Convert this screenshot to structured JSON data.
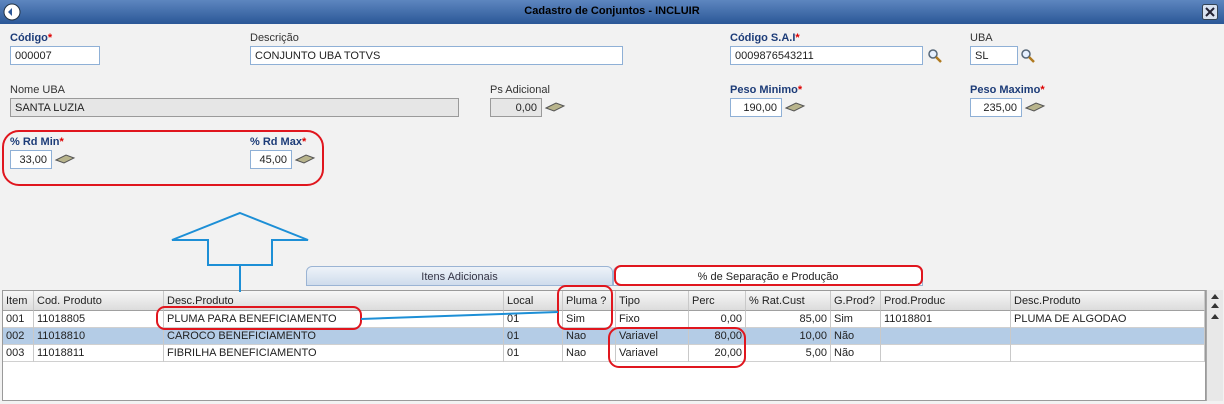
{
  "window": {
    "title": "Cadastro de Conjuntos - INCLUIR"
  },
  "fields": {
    "codigo": {
      "label": "Código",
      "required": "*",
      "value": "000007"
    },
    "descricao": {
      "label": "Descrição",
      "value": "CONJUNTO UBA TOTVS"
    },
    "codigo_sai": {
      "label": "Código S.A.I",
      "required": "*",
      "value": "0009876543211"
    },
    "uba": {
      "label": "UBA",
      "value": "SL"
    },
    "nome_uba": {
      "label": "Nome UBA",
      "value": "SANTA LUZIA"
    },
    "ps_adicional": {
      "label": "Ps Adicional",
      "value": "0,00"
    },
    "peso_minimo": {
      "label": "Peso Minimo",
      "required": "*",
      "value": "190,00"
    },
    "peso_maximo": {
      "label": "Peso Maximo",
      "required": "*",
      "value": "235,00"
    },
    "rd_min": {
      "label": "% Rd Min",
      "required": "*",
      "value": "33,00"
    },
    "rd_max": {
      "label": "% Rd Max",
      "required": "*",
      "value": "45,00"
    }
  },
  "tabs": [
    "Itens Adicionais",
    "% de Separação e Produção"
  ],
  "table": {
    "headers": [
      "Item",
      "Cod. Produto",
      "Desc.Produto",
      "Local",
      "Pluma ?",
      "Tipo",
      "Perc",
      "% Rat.Cust",
      "G.Prod?",
      "Prod.Produc",
      "Desc.Produto"
    ],
    "rows": [
      [
        "001",
        "11018805",
        "PLUMA PARA BENEFICIAMENTO",
        "01",
        "Sim",
        "Fixo",
        "0,00",
        "85,00",
        "Sim",
        "11018801",
        "PLUMA DE ALGODAO"
      ],
      [
        "002",
        "11018810",
        "CAROCO BENEFICIAMENTO",
        "01",
        "Nao",
        "Variavel",
        "80,00",
        "10,00",
        "Não",
        "",
        ""
      ],
      [
        "003",
        "11018811",
        "FIBRILHA BENEFICIAMENTO",
        "01",
        "Nao",
        "Variavel",
        "20,00",
        "5,00",
        "Não",
        "",
        ""
      ]
    ]
  }
}
